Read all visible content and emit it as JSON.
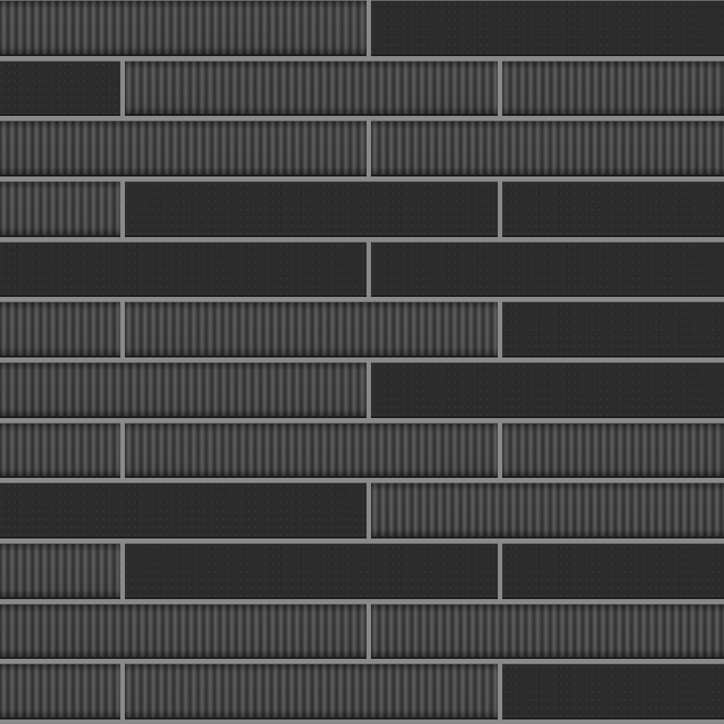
{
  "colors": {
    "grout": "#8a8a8a",
    "smooth_tile": "#2c2c2c",
    "ribbed_tile": "#444444"
  },
  "rows": [
    {
      "offset": "half",
      "tiles": [
        "ribbed",
        "smooth"
      ]
    },
    {
      "offset": "third",
      "tiles": [
        "smooth",
        "ribbed",
        "ribbed"
      ]
    },
    {
      "offset": "half",
      "tiles": [
        "ribbed",
        "ribbed"
      ]
    },
    {
      "offset": "third",
      "tiles": [
        "ribbed",
        "smooth",
        "smooth"
      ]
    },
    {
      "offset": "half",
      "tiles": [
        "smooth",
        "smooth"
      ]
    },
    {
      "offset": "third",
      "tiles": [
        "ribbed",
        "ribbed",
        "smooth"
      ]
    },
    {
      "offset": "half",
      "tiles": [
        "ribbed",
        "smooth"
      ]
    },
    {
      "offset": "third",
      "tiles": [
        "ribbed",
        "ribbed",
        "ribbed"
      ]
    },
    {
      "offset": "half",
      "tiles": [
        "smooth",
        "ribbed"
      ]
    },
    {
      "offset": "third",
      "tiles": [
        "ribbed",
        "smooth",
        "smooth"
      ]
    },
    {
      "offset": "half",
      "tiles": [
        "ribbed",
        "ribbed"
      ]
    },
    {
      "offset": "third",
      "tiles": [
        "ribbed",
        "ribbed",
        "smooth"
      ]
    }
  ]
}
